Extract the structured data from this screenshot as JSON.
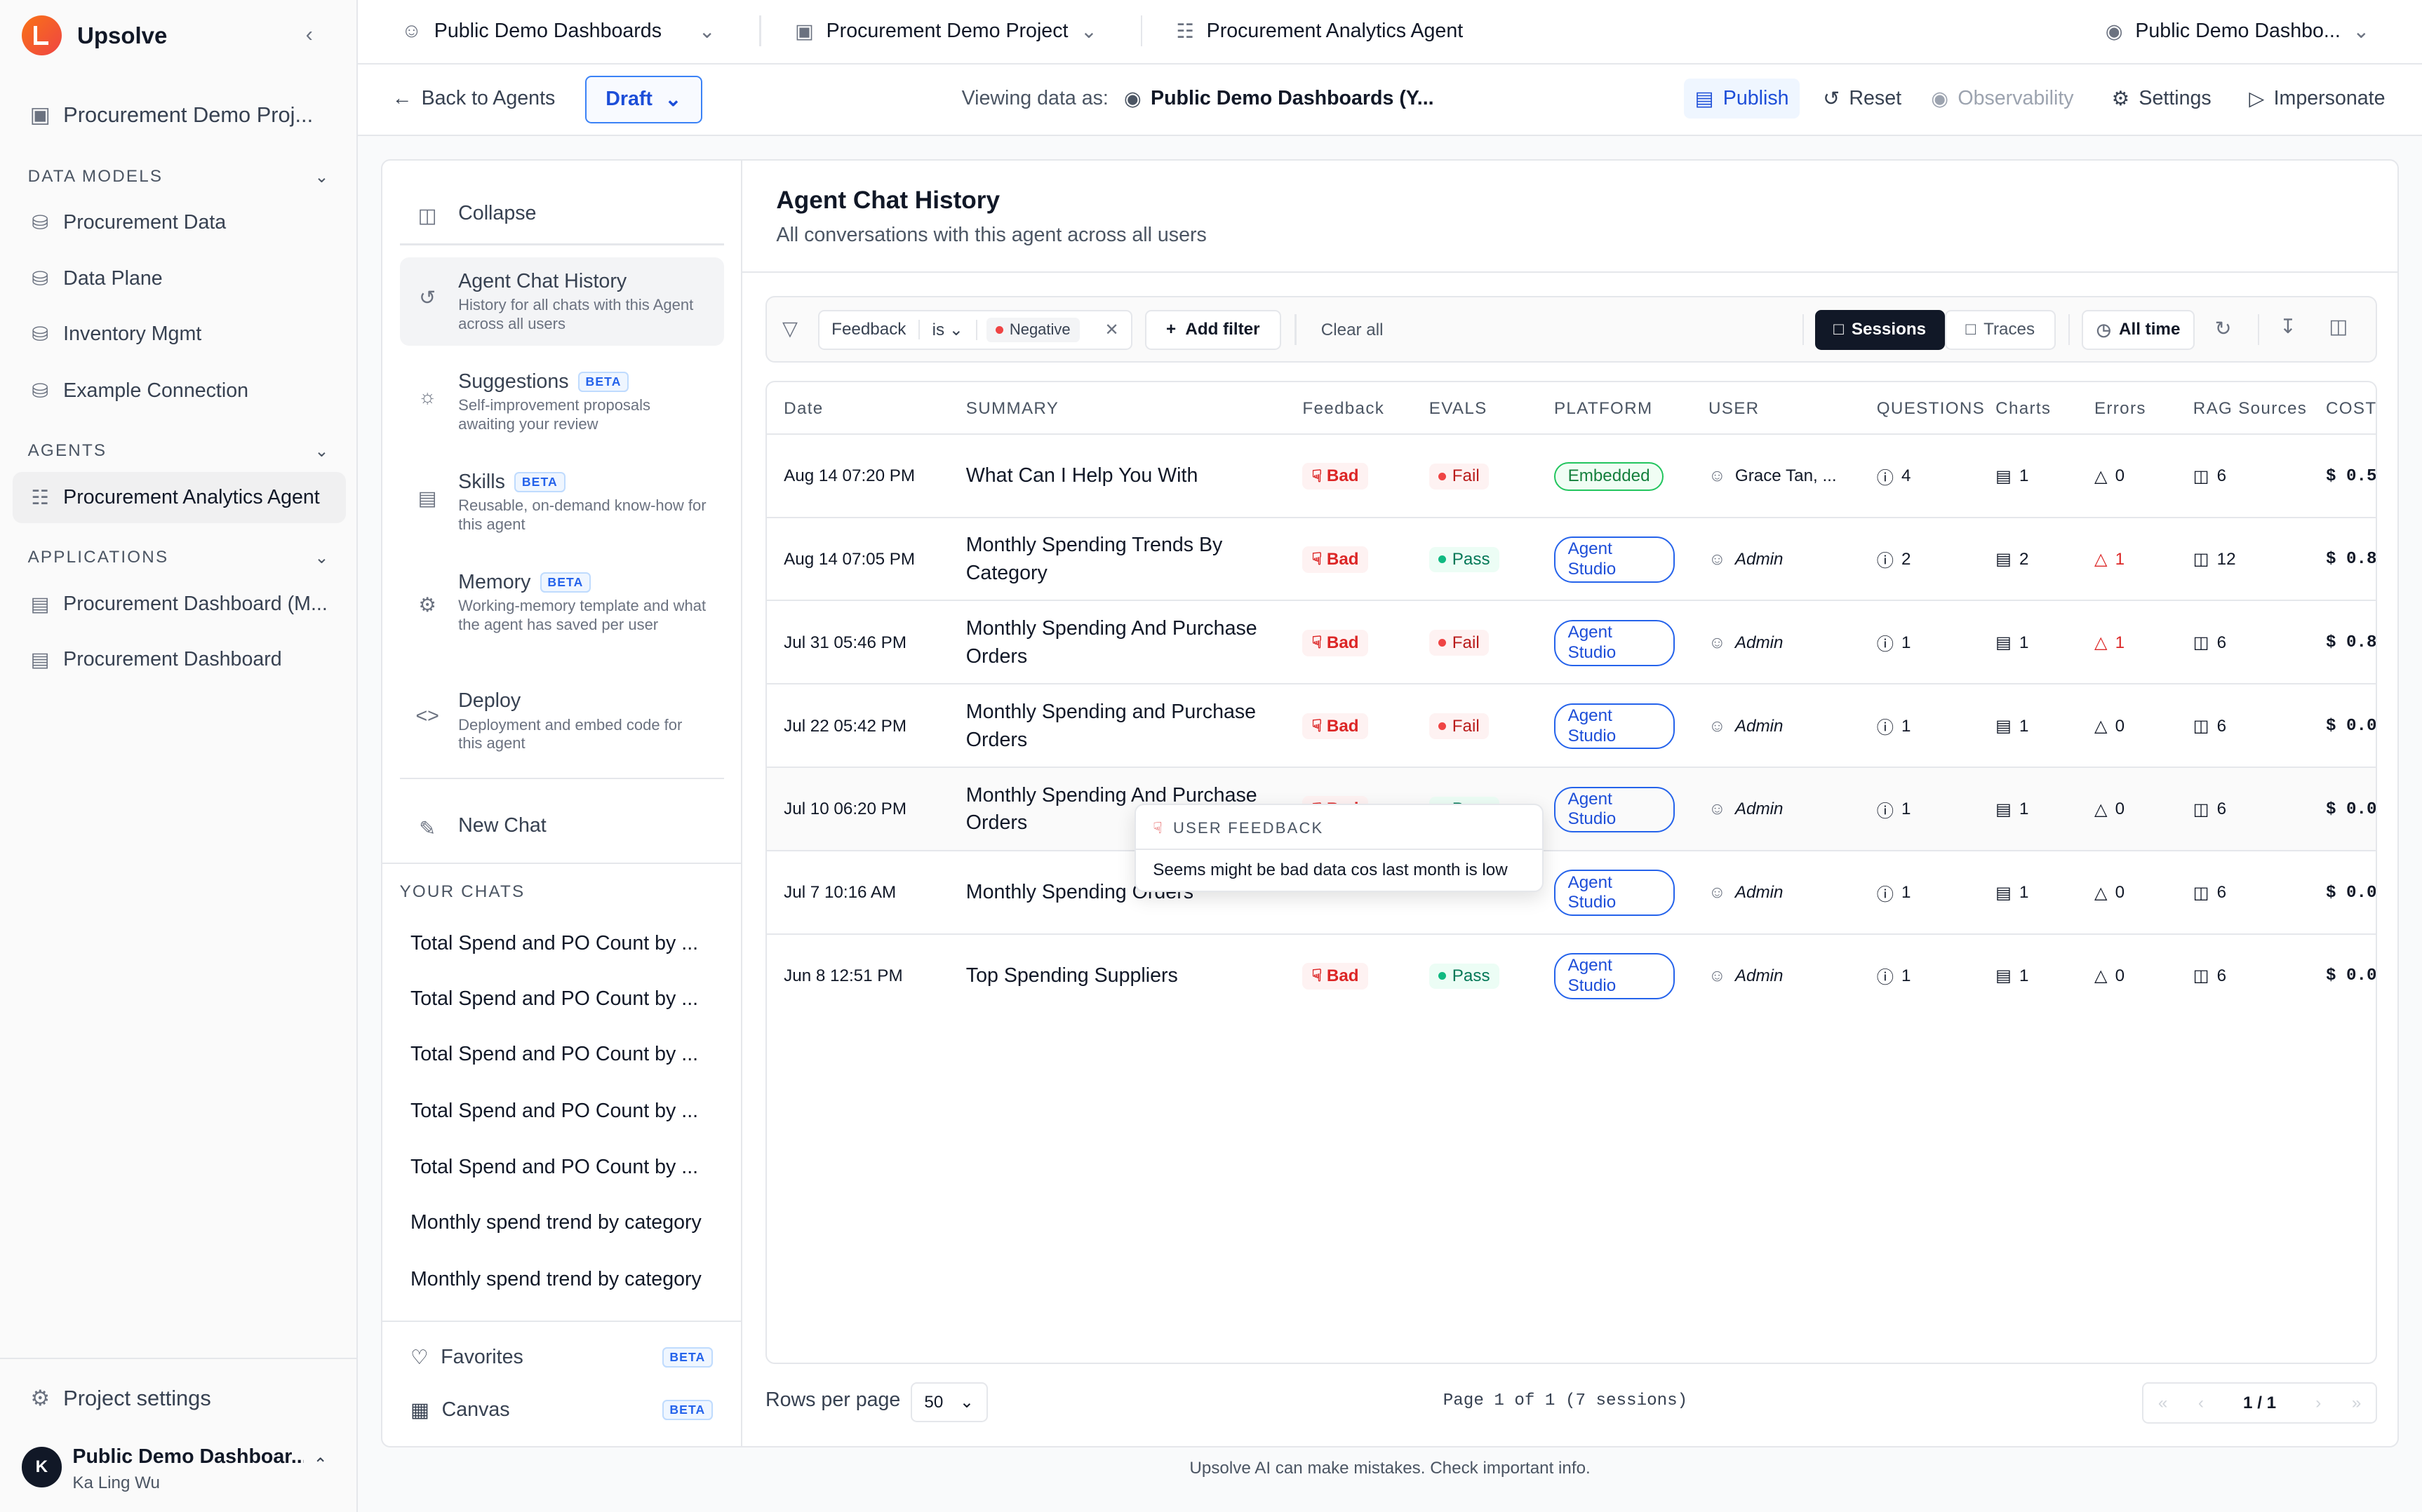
{
  "app": {
    "name": "Upsolve",
    "collapse_icon": "chevron-left-icon"
  },
  "sidebar": {
    "project": "Procurement Demo Proj...",
    "data_models_heading": "DATA MODELS",
    "data_models": [
      "Procurement Data",
      "Data Plane",
      "Inventory Mgmt",
      "Example Connection"
    ],
    "agents_heading": "AGENTS",
    "agents": [
      "Procurement Analytics Agent"
    ],
    "applications_heading": "APPLICATIONS",
    "applications": [
      "Procurement Dashboard (M...",
      "Procurement Dashboard"
    ],
    "project_settings": "Project settings",
    "user": {
      "initial": "K",
      "org": "Public Demo Dashboar...",
      "name": "Ka Ling Wu"
    }
  },
  "topbar": {
    "workspace": "Public Demo Dashboards",
    "project": "Procurement Demo Project",
    "agent": "Procurement Analytics Agent",
    "account": "Public Demo Dashbo..."
  },
  "toolbar": {
    "back": "Back to Agents",
    "draft": "Draft",
    "viewing_label": "Viewing data as:",
    "viewing_value": "Public Demo Dashboards (Y...",
    "publish": "Publish",
    "reset": "Reset",
    "observability": "Observability",
    "settings": "Settings",
    "impersonate": "Impersonate"
  },
  "nav": {
    "collapse": "Collapse",
    "items": [
      {
        "title": "Agent Chat History",
        "desc": "History for all chats with this Agent across all users"
      },
      {
        "title": "Suggestions",
        "beta": "BETA",
        "desc": "Self-improvement proposals awaiting your review"
      },
      {
        "title": "Skills",
        "beta": "BETA",
        "desc": "Reusable, on-demand know-how for this agent"
      },
      {
        "title": "Memory",
        "beta": "BETA",
        "desc": "Working-memory template and what the agent has saved per user"
      },
      {
        "title": "Deploy",
        "desc": "Deployment and embed code for this agent"
      }
    ],
    "new_chat": "New Chat",
    "your_chats_heading": "YOUR CHATS",
    "chats": [
      "Total Spend and PO Count by ...",
      "Total Spend and PO Count by ...",
      "Total Spend and PO Count by ...",
      "Total Spend and PO Count by ...",
      "Total Spend and PO Count by ...",
      "Monthly spend trend by category",
      "Monthly spend trend by category"
    ],
    "favorites": "Favorites",
    "canvas": "Canvas",
    "beta": "BETA"
  },
  "main": {
    "title": "Agent Chat History",
    "subtitle": "All conversations with this agent across all users",
    "filter": {
      "field": "Feedback",
      "op": "is",
      "value": "Negative",
      "add": "Add filter",
      "clear": "Clear all",
      "sessions": "Sessions",
      "traces": "Traces",
      "range": "All time"
    },
    "columns": [
      "Date",
      "SUMMARY",
      "Feedback",
      "EVALS",
      "PLATFORM",
      "USER",
      "QUESTIONS",
      "Charts",
      "Errors",
      "RAG Sources",
      "COST"
    ],
    "rows": [
      {
        "date": "Aug 14 07:20 PM",
        "summary": "What Can I Help You With",
        "feedback": "Bad",
        "eval": "Fail",
        "platform": "Embedded",
        "user": "Grace Tan, ...",
        "questions": "4",
        "charts": "1",
        "errors": "0",
        "rag": "6",
        "cost": "$ 0.5"
      },
      {
        "date": "Aug 14 07:05 PM",
        "summary": "Monthly Spending Trends By Category",
        "feedback": "Bad",
        "eval": "Pass",
        "platform": "Agent Studio",
        "user": "Admin",
        "questions": "2",
        "charts": "2",
        "errors": "1",
        "rag": "12",
        "cost": "$ 0.8"
      },
      {
        "date": "Jul 31 05:46 PM",
        "summary": "Monthly Spending And Purchase Orders",
        "feedback": "Bad",
        "eval": "Fail",
        "platform": "Agent Studio",
        "user": "Admin",
        "questions": "1",
        "charts": "1",
        "errors": "1",
        "rag": "6",
        "cost": "$ 0.8"
      },
      {
        "date": "Jul 22 05:42 PM",
        "summary": "Monthly Spending and Purchase Orders",
        "feedback": "Bad",
        "eval": "Fail",
        "platform": "Agent Studio",
        "user": "Admin",
        "questions": "1",
        "charts": "1",
        "errors": "0",
        "rag": "6",
        "cost": "$ 0.0"
      },
      {
        "date": "Jul 10 06:20 PM",
        "summary": "Monthly Spending And Purchase Orders",
        "feedback": "Bad",
        "eval": "Pass",
        "platform": "Agent Studio",
        "user": "Admin",
        "questions": "1",
        "charts": "1",
        "errors": "0",
        "rag": "6",
        "cost": "$ 0.0"
      },
      {
        "date": "Jul 7 10:16 AM",
        "summary": "Monthly Spending Orders",
        "feedback": "",
        "eval": "",
        "platform": "Agent Studio",
        "user": "Admin",
        "questions": "1",
        "charts": "1",
        "errors": "0",
        "rag": "6",
        "cost": "$ 0.0"
      },
      {
        "date": "Jun 8 12:51 PM",
        "summary": "Top Spending Suppliers",
        "feedback": "Bad",
        "eval": "Pass",
        "platform": "Agent Studio",
        "user": "Admin",
        "questions": "1",
        "charts": "1",
        "errors": "0",
        "rag": "6",
        "cost": "$ 0.0"
      }
    ],
    "tooltip": {
      "heading": "USER FEEDBACK",
      "text": "Seems might be bad data cos last month is low"
    },
    "pagination": {
      "rows_label": "Rows per page",
      "rows_value": "50",
      "info": "Page 1 of 1 (7 sessions)",
      "page": "1 / 1"
    }
  },
  "footer": "Upsolve AI can make mistakes. Check important info.",
  "colors": {
    "accent": "#1d4ed8",
    "bad": "#dc2626",
    "pass": "#047857"
  }
}
